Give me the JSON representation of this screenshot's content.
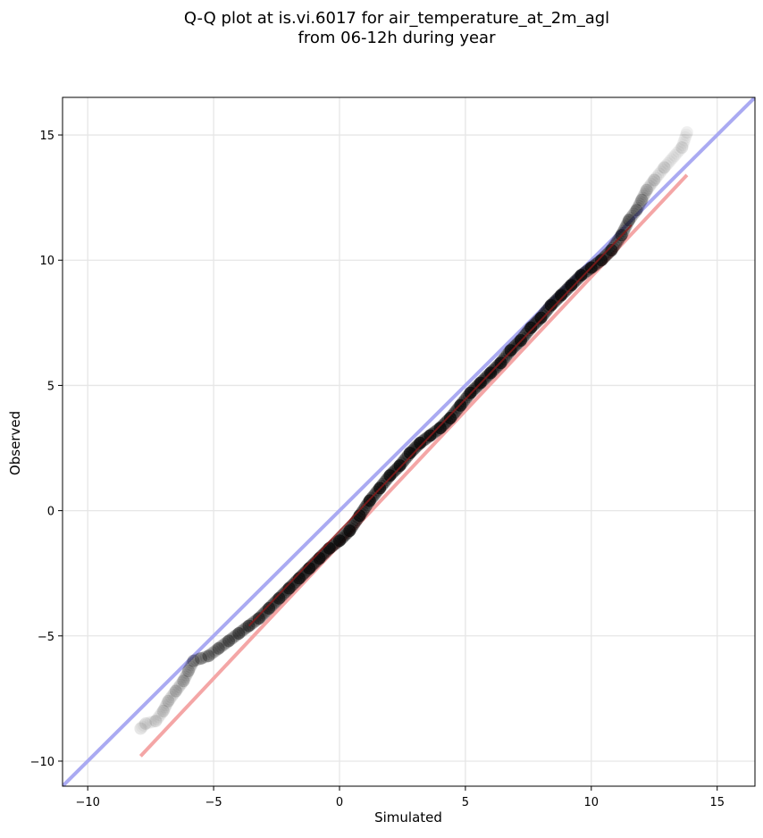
{
  "chart_data": {
    "type": "scatter",
    "title_lines": [
      "Q-Q plot at is.vi.6017 for air_temperature_at_2m_agl",
      "from 06-12h during year"
    ],
    "xlabel": "Simulated",
    "ylabel": "Observed",
    "xlim": [
      -11,
      16.5
    ],
    "ylim": [
      -11,
      16.5
    ],
    "x_ticks": [
      -10,
      -5,
      0,
      5,
      10,
      15
    ],
    "y_ticks": [
      -10,
      -5,
      0,
      5,
      10,
      15
    ],
    "x_tick_labels": [
      "−10",
      "−5",
      "0",
      "5",
      "10",
      "15"
    ],
    "y_tick_labels": [
      "−10",
      "−5",
      "0",
      "5",
      "10",
      "15"
    ],
    "grid": true,
    "legend": "none",
    "colors": {
      "points": "#000000",
      "identity_line": "#aaaaf2",
      "fit_line_outer": "#f4a6a6",
      "fit_line_inner": "#8b1a1a"
    },
    "identity_line": {
      "from": [
        -11,
        -11
      ],
      "to": [
        16.5,
        16.5
      ]
    },
    "fit_line": {
      "from": [
        -7.9,
        -9.8
      ],
      "to": [
        13.8,
        13.4
      ]
    },
    "series": [
      {
        "kind": "points",
        "x": [
          -7.9,
          -7.7,
          -7.3,
          -7.0,
          -6.8,
          -6.5,
          -6.2,
          -6.0,
          -5.8,
          -5.5,
          -5.2,
          -4.8,
          -4.4,
          -4.0,
          -3.6,
          -3.2,
          -2.8,
          -2.4,
          -2.0,
          -1.6,
          -1.2,
          -0.8,
          -0.4,
          0.0,
          0.4,
          0.8,
          1.2,
          1.6,
          2.0,
          2.4,
          2.8,
          3.2,
          3.6,
          4.0,
          4.4,
          4.8,
          5.2,
          5.6,
          6.0,
          6.4,
          6.8,
          7.2,
          7.6,
          8.0,
          8.4,
          8.8,
          9.2,
          9.6,
          10.0,
          10.4,
          10.8,
          11.2,
          11.5,
          11.8,
          12.0,
          12.2,
          12.5,
          12.9,
          13.6,
          13.8
        ],
        "y": [
          -8.7,
          -8.5,
          -8.4,
          -8.0,
          -7.6,
          -7.2,
          -6.8,
          -6.4,
          -6.0,
          -5.9,
          -5.8,
          -5.5,
          -5.2,
          -4.9,
          -4.6,
          -4.3,
          -3.9,
          -3.5,
          -3.1,
          -2.7,
          -2.3,
          -1.9,
          -1.5,
          -1.2,
          -0.8,
          -0.2,
          0.4,
          0.9,
          1.4,
          1.8,
          2.3,
          2.7,
          3.0,
          3.3,
          3.7,
          4.2,
          4.7,
          5.1,
          5.5,
          5.9,
          6.4,
          6.8,
          7.3,
          7.7,
          8.2,
          8.6,
          9.0,
          9.4,
          9.7,
          10.0,
          10.4,
          11.0,
          11.6,
          12.0,
          12.4,
          12.8,
          13.2,
          13.7,
          14.5,
          15.1
        ],
        "opacity": [
          0.1,
          0.1,
          0.12,
          0.14,
          0.16,
          0.2,
          0.22,
          0.25,
          0.3,
          0.35,
          0.4,
          0.45,
          0.5,
          0.55,
          0.6,
          0.65,
          0.7,
          0.75,
          0.8,
          0.85,
          0.9,
          0.9,
          0.9,
          0.9,
          0.9,
          0.9,
          0.9,
          0.9,
          0.9,
          0.9,
          0.9,
          0.9,
          0.9,
          0.9,
          0.9,
          0.9,
          0.9,
          0.9,
          0.9,
          0.9,
          0.9,
          0.9,
          0.9,
          0.9,
          0.9,
          0.9,
          0.9,
          0.9,
          0.9,
          0.85,
          0.75,
          0.6,
          0.45,
          0.35,
          0.28,
          0.2,
          0.15,
          0.12,
          0.1,
          0.1
        ]
      }
    ]
  }
}
